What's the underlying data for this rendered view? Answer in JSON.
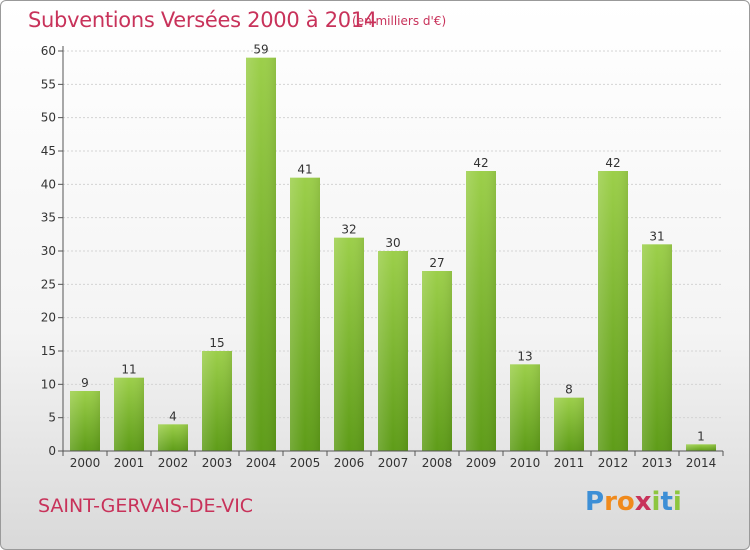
{
  "chart_data": {
    "type": "bar",
    "title": "Subventions Versées 2000 à 2014",
    "subtitle": "(en milliers d'€)",
    "categories": [
      "2000",
      "2001",
      "2002",
      "2003",
      "2004",
      "2005",
      "2006",
      "2007",
      "2008",
      "2009",
      "2010",
      "2011",
      "2012",
      "2013",
      "2014"
    ],
    "values": [
      9,
      11,
      4,
      15,
      59,
      41,
      32,
      30,
      27,
      42,
      13,
      8,
      42,
      31,
      1
    ],
    "ylim": [
      0,
      60
    ],
    "yticks": [
      0,
      5,
      10,
      15,
      20,
      25,
      30,
      35,
      40,
      45,
      50,
      55,
      60
    ],
    "grid": true,
    "bar_color_top": "#9ccf4a",
    "bar_color_bottom": "#5e9c18"
  },
  "footer": {
    "commune": "SAINT-GERVAIS-DE-VIC",
    "logo_letters": [
      "P",
      "r",
      "o",
      "x",
      "i",
      "t",
      "i"
    ],
    "logo_colors": [
      "#3d8fd6",
      "#f08a1c",
      "#f08a1c",
      "#c8325a",
      "#8dc63f",
      "#3d8fd6",
      "#8dc63f"
    ]
  },
  "colors": {
    "accent": "#c8325a"
  }
}
